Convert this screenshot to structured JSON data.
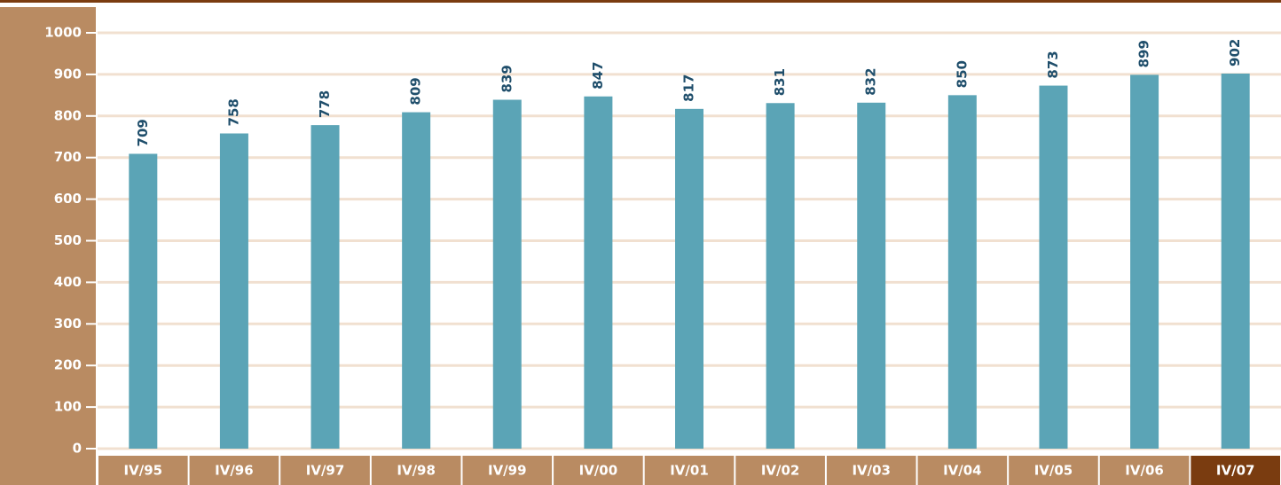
{
  "chart_data": {
    "type": "bar",
    "categories": [
      "IV/95",
      "IV/96",
      "IV/97",
      "IV/98",
      "IV/99",
      "IV/00",
      "IV/01",
      "IV/02",
      "IV/03",
      "IV/04",
      "IV/05",
      "IV/06",
      "IV/07"
    ],
    "values": [
      709,
      758,
      778,
      809,
      839,
      847,
      817,
      831,
      832,
      850,
      873,
      899,
      902
    ],
    "color": "#5ba4b6",
    "label_color": "#1f4e6b",
    "axis_panel_color": "#b98b62",
    "highlight_category_color": "#7a3c10",
    "highlight_index": 12,
    "ylim": [
      0,
      1000
    ],
    "yticks": [
      0,
      100,
      200,
      300,
      400,
      500,
      600,
      700,
      800,
      900,
      1000
    ],
    "grid": true,
    "grid_color": "#f1e0d0"
  }
}
